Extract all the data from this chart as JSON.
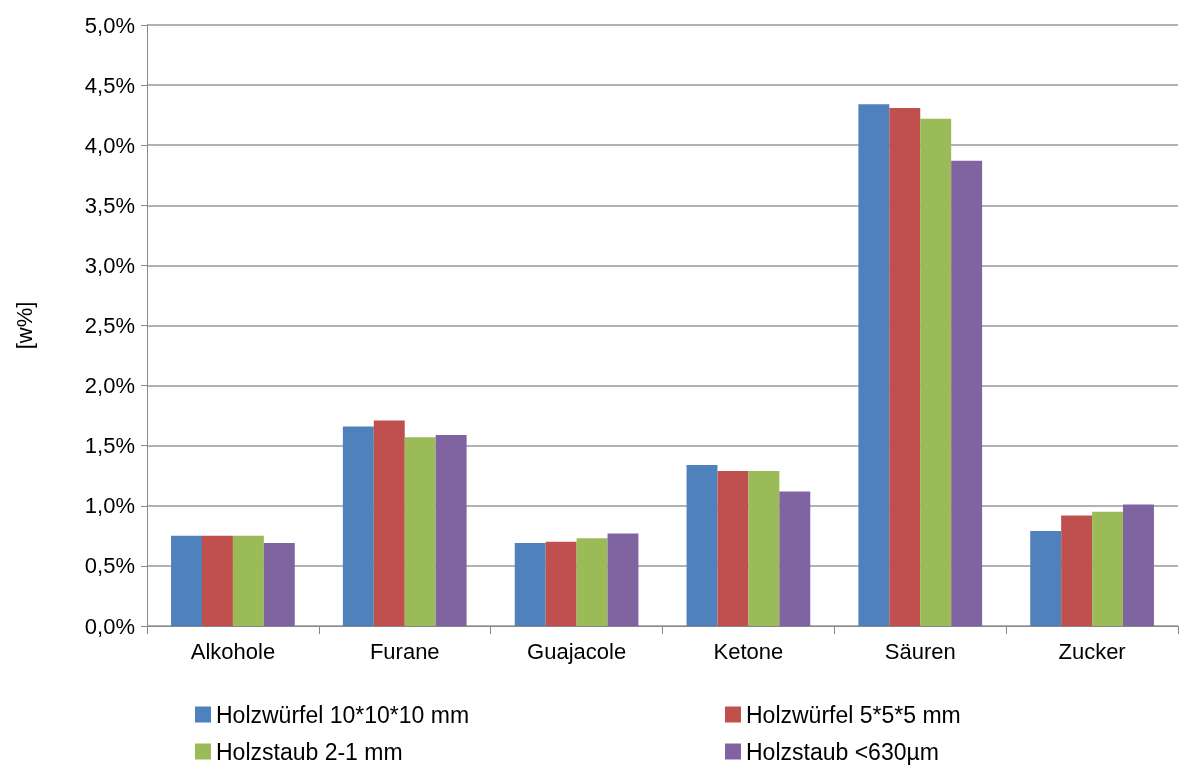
{
  "chart_data": {
    "type": "bar",
    "ylabel": "[w%]",
    "categories": [
      "Alkohole",
      "Furane",
      "Guajacole",
      "Ketone",
      "Säuren",
      "Zucker"
    ],
    "series": [
      {
        "name": "Holzwürfel 10*10*10 mm",
        "color": "#4f81bd",
        "values": [
          0.75,
          1.66,
          0.69,
          1.34,
          4.34,
          0.79
        ]
      },
      {
        "name": "Holzwürfel 5*5*5 mm",
        "color": "#c0504d",
        "values": [
          0.75,
          1.71,
          0.7,
          1.29,
          4.31,
          0.92
        ]
      },
      {
        "name": "Holzstaub 2-1 mm",
        "color": "#9bbb59",
        "values": [
          0.75,
          1.57,
          0.73,
          1.29,
          4.22,
          0.95
        ]
      },
      {
        "name": "Holzstaub <630µm",
        "color": "#8064a2",
        "values": [
          0.69,
          1.59,
          0.77,
          1.12,
          3.87,
          1.01
        ]
      }
    ],
    "ylim": [
      0,
      5
    ],
    "yticks": [
      {
        "value": 0,
        "label": "0,0%"
      },
      {
        "value": 0.5,
        "label": "0,5%"
      },
      {
        "value": 1,
        "label": "1,0%"
      },
      {
        "value": 1.5,
        "label": "1,5%"
      },
      {
        "value": 2,
        "label": "2,0%"
      },
      {
        "value": 2.5,
        "label": "2,5%"
      },
      {
        "value": 3,
        "label": "3,0%"
      },
      {
        "value": 3.5,
        "label": "3,5%"
      },
      {
        "value": 4,
        "label": "4,0%"
      },
      {
        "value": 4.5,
        "label": "4,5%"
      },
      {
        "value": 5,
        "label": "5,0%"
      }
    ],
    "grid": "y",
    "legend": "bottom"
  }
}
